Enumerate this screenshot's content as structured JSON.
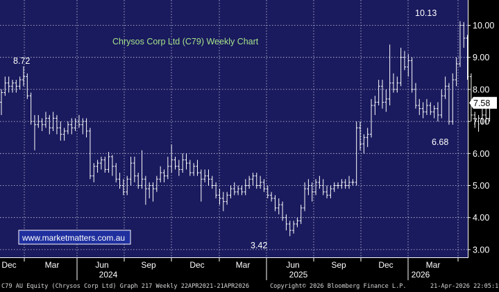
{
  "chart_data": {
    "type": "ohlc",
    "title": "Chrysos Corp Ltd (C79) Weekly Chart",
    "watermark": "www.marketmatters.com.au",
    "y_axis": {
      "ticks": [
        "3.00",
        "4.00",
        "5.00",
        "6.00",
        "7.00",
        "8.00",
        "9.00",
        "10.00"
      ],
      "ylim": [
        2.8,
        10.9
      ],
      "position": "right"
    },
    "x_axis": {
      "month_ticks": [
        "Dec",
        "Mar",
        "Jun",
        "Sep",
        "Dec",
        "Mar",
        "Jun",
        "Sep",
        "Dec",
        "Mar"
      ],
      "year_labels": [
        "2024",
        "2025",
        "2026"
      ]
    },
    "last_price": "7.58",
    "annotations": [
      "8.72",
      "3.42",
      "10.13",
      "6.68"
    ],
    "grid": true,
    "colors": {
      "background": "#1a1a5e",
      "bars": "#ffffff",
      "grid": "#d0d0e0",
      "title": "#a4e28a",
      "watermark_bg": "#1f2f9e",
      "watermark_text": "#ffffff"
    },
    "weeks": [
      {
        "o": 7.6,
        "h": 8.0,
        "l": 7.2,
        "c": 7.9
      },
      {
        "o": 7.9,
        "h": 8.4,
        "l": 7.8,
        "c": 8.2
      },
      {
        "o": 8.2,
        "h": 8.4,
        "l": 7.9,
        "c": 8.1
      },
      {
        "o": 8.1,
        "h": 8.3,
        "l": 7.9,
        "c": 8.2
      },
      {
        "o": 8.2,
        "h": 8.3,
        "l": 7.9,
        "c": 8.1
      },
      {
        "o": 8.1,
        "h": 8.4,
        "l": 8.0,
        "c": 8.3
      },
      {
        "o": 8.3,
        "h": 8.72,
        "l": 8.1,
        "c": 8.4
      },
      {
        "o": 8.4,
        "h": 8.5,
        "l": 7.7,
        "c": 7.8
      },
      {
        "o": 7.8,
        "h": 7.9,
        "l": 6.9,
        "c": 7.0
      },
      {
        "o": 7.0,
        "h": 7.2,
        "l": 6.1,
        "c": 6.9
      },
      {
        "o": 6.9,
        "h": 7.2,
        "l": 6.8,
        "c": 7.0
      },
      {
        "o": 7.0,
        "h": 7.1,
        "l": 6.7,
        "c": 6.9
      },
      {
        "o": 6.9,
        "h": 7.3,
        "l": 6.8,
        "c": 7.1
      },
      {
        "o": 7.1,
        "h": 7.2,
        "l": 6.6,
        "c": 6.8
      },
      {
        "o": 6.8,
        "h": 7.3,
        "l": 6.7,
        "c": 7.1
      },
      {
        "o": 7.1,
        "h": 7.2,
        "l": 6.6,
        "c": 6.8
      },
      {
        "o": 6.8,
        "h": 7.0,
        "l": 6.4,
        "c": 6.6
      },
      {
        "o": 6.6,
        "h": 6.8,
        "l": 6.4,
        "c": 6.7
      },
      {
        "o": 6.7,
        "h": 7.0,
        "l": 6.6,
        "c": 6.9
      },
      {
        "o": 6.9,
        "h": 7.1,
        "l": 6.6,
        "c": 6.8
      },
      {
        "o": 6.8,
        "h": 7.1,
        "l": 6.7,
        "c": 7.0
      },
      {
        "o": 7.0,
        "h": 7.2,
        "l": 6.8,
        "c": 6.9
      },
      {
        "o": 6.9,
        "h": 7.1,
        "l": 6.6,
        "c": 7.0
      },
      {
        "o": 7.0,
        "h": 7.1,
        "l": 6.5,
        "c": 6.7
      },
      {
        "o": 6.7,
        "h": 6.8,
        "l": 5.2,
        "c": 5.3
      },
      {
        "o": 5.3,
        "h": 5.7,
        "l": 5.1,
        "c": 5.6
      },
      {
        "o": 5.6,
        "h": 5.8,
        "l": 5.4,
        "c": 5.7
      },
      {
        "o": 5.7,
        "h": 5.9,
        "l": 5.5,
        "c": 5.8
      },
      {
        "o": 5.8,
        "h": 5.9,
        "l": 5.4,
        "c": 5.5
      },
      {
        "o": 5.5,
        "h": 6.05,
        "l": 5.4,
        "c": 5.9
      },
      {
        "o": 5.9,
        "h": 5.95,
        "l": 5.3,
        "c": 5.6
      },
      {
        "o": 5.6,
        "h": 5.7,
        "l": 5.1,
        "c": 5.2
      },
      {
        "o": 5.2,
        "h": 5.4,
        "l": 4.9,
        "c": 5.0
      },
      {
        "o": 5.0,
        "h": 5.2,
        "l": 4.7,
        "c": 4.8
      },
      {
        "o": 4.8,
        "h": 5.3,
        "l": 4.7,
        "c": 5.2
      },
      {
        "o": 5.2,
        "h": 5.9,
        "l": 5.0,
        "c": 5.7
      },
      {
        "o": 5.7,
        "h": 5.9,
        "l": 5.1,
        "c": 5.3
      },
      {
        "o": 5.3,
        "h": 5.4,
        "l": 4.9,
        "c": 5.0
      },
      {
        "o": 5.0,
        "h": 6.1,
        "l": 4.9,
        "c": 5.2
      },
      {
        "o": 5.2,
        "h": 5.3,
        "l": 4.4,
        "c": 4.9
      },
      {
        "o": 4.9,
        "h": 5.1,
        "l": 4.6,
        "c": 5.0
      },
      {
        "o": 5.0,
        "h": 5.1,
        "l": 4.5,
        "c": 4.9
      },
      {
        "o": 4.9,
        "h": 5.3,
        "l": 4.8,
        "c": 5.2
      },
      {
        "o": 5.2,
        "h": 5.6,
        "l": 5.1,
        "c": 5.4
      },
      {
        "o": 5.4,
        "h": 5.5,
        "l": 5.1,
        "c": 5.3
      },
      {
        "o": 5.3,
        "h": 5.9,
        "l": 5.2,
        "c": 5.6
      },
      {
        "o": 5.6,
        "h": 6.28,
        "l": 5.4,
        "c": 5.8
      },
      {
        "o": 5.8,
        "h": 5.9,
        "l": 5.5,
        "c": 5.6
      },
      {
        "o": 5.6,
        "h": 5.8,
        "l": 5.3,
        "c": 5.5
      },
      {
        "o": 5.5,
        "h": 6.0,
        "l": 5.4,
        "c": 5.8
      },
      {
        "o": 5.8,
        "h": 6.0,
        "l": 5.5,
        "c": 5.7
      },
      {
        "o": 5.7,
        "h": 5.8,
        "l": 5.3,
        "c": 5.4
      },
      {
        "o": 5.4,
        "h": 5.7,
        "l": 5.3,
        "c": 5.6
      },
      {
        "o": 5.6,
        "h": 5.8,
        "l": 5.3,
        "c": 5.4
      },
      {
        "o": 5.4,
        "h": 5.5,
        "l": 4.5,
        "c": 5.2
      },
      {
        "o": 5.2,
        "h": 5.5,
        "l": 5.1,
        "c": 5.3
      },
      {
        "o": 5.3,
        "h": 5.5,
        "l": 5.0,
        "c": 5.2
      },
      {
        "o": 5.2,
        "h": 5.3,
        "l": 4.9,
        "c": 5.0
      },
      {
        "o": 5.0,
        "h": 5.1,
        "l": 4.6,
        "c": 4.7
      },
      {
        "o": 4.7,
        "h": 4.9,
        "l": 4.4,
        "c": 4.6
      },
      {
        "o": 4.6,
        "h": 4.8,
        "l": 4.2,
        "c": 4.5
      },
      {
        "o": 4.5,
        "h": 4.8,
        "l": 4.4,
        "c": 4.7
      },
      {
        "o": 4.7,
        "h": 5.0,
        "l": 4.6,
        "c": 4.9
      },
      {
        "o": 4.9,
        "h": 5.1,
        "l": 4.7,
        "c": 4.8
      },
      {
        "o": 4.8,
        "h": 5.0,
        "l": 4.7,
        "c": 4.9
      },
      {
        "o": 4.9,
        "h": 5.0,
        "l": 4.7,
        "c": 4.8
      },
      {
        "o": 4.8,
        "h": 5.2,
        "l": 4.7,
        "c": 5.0
      },
      {
        "o": 5.0,
        "h": 5.3,
        "l": 4.9,
        "c": 5.2
      },
      {
        "o": 5.2,
        "h": 5.4,
        "l": 5.0,
        "c": 5.3
      },
      {
        "o": 5.3,
        "h": 5.4,
        "l": 4.9,
        "c": 5.0
      },
      {
        "o": 5.0,
        "h": 5.3,
        "l": 4.9,
        "c": 5.1
      },
      {
        "o": 5.1,
        "h": 5.2,
        "l": 4.8,
        "c": 4.9
      },
      {
        "o": 4.9,
        "h": 5.0,
        "l": 4.6,
        "c": 4.7
      },
      {
        "o": 4.7,
        "h": 4.8,
        "l": 4.5,
        "c": 4.6
      },
      {
        "o": 4.6,
        "h": 4.7,
        "l": 4.2,
        "c": 4.3
      },
      {
        "o": 4.3,
        "h": 4.6,
        "l": 4.1,
        "c": 4.4
      },
      {
        "o": 4.4,
        "h": 4.5,
        "l": 3.9,
        "c": 4.0
      },
      {
        "o": 4.0,
        "h": 4.1,
        "l": 3.6,
        "c": 3.8
      },
      {
        "o": 3.8,
        "h": 3.9,
        "l": 3.42,
        "c": 3.6
      },
      {
        "o": 3.6,
        "h": 3.9,
        "l": 3.5,
        "c": 3.8
      },
      {
        "o": 3.8,
        "h": 4.0,
        "l": 3.7,
        "c": 3.9
      },
      {
        "o": 3.9,
        "h": 4.4,
        "l": 3.8,
        "c": 4.3
      },
      {
        "o": 4.3,
        "h": 5.1,
        "l": 4.2,
        "c": 4.9
      },
      {
        "o": 4.9,
        "h": 5.2,
        "l": 4.7,
        "c": 5.0
      },
      {
        "o": 5.0,
        "h": 5.1,
        "l": 4.5,
        "c": 4.8
      },
      {
        "o": 4.8,
        "h": 5.2,
        "l": 4.7,
        "c": 5.1
      },
      {
        "o": 5.1,
        "h": 5.3,
        "l": 4.9,
        "c": 5.0
      },
      {
        "o": 5.0,
        "h": 5.2,
        "l": 4.7,
        "c": 4.8
      },
      {
        "o": 4.8,
        "h": 5.0,
        "l": 4.6,
        "c": 4.7
      },
      {
        "o": 4.7,
        "h": 5.0,
        "l": 4.6,
        "c": 4.9
      },
      {
        "o": 4.9,
        "h": 5.1,
        "l": 4.8,
        "c": 5.0
      },
      {
        "o": 5.0,
        "h": 5.1,
        "l": 4.9,
        "c": 5.0
      },
      {
        "o": 5.0,
        "h": 5.2,
        "l": 4.9,
        "c": 5.1
      },
      {
        "o": 5.1,
        "h": 5.2,
        "l": 4.9,
        "c": 5.0
      },
      {
        "o": 5.0,
        "h": 5.3,
        "l": 4.9,
        "c": 5.1
      },
      {
        "o": 5.1,
        "h": 5.2,
        "l": 5.0,
        "c": 5.1
      },
      {
        "o": 5.1,
        "h": 7.0,
        "l": 5.0,
        "c": 6.8
      },
      {
        "o": 6.8,
        "h": 7.0,
        "l": 6.1,
        "c": 6.3
      },
      {
        "o": 6.3,
        "h": 6.6,
        "l": 6.0,
        "c": 6.5
      },
      {
        "o": 6.5,
        "h": 6.8,
        "l": 6.2,
        "c": 6.6
      },
      {
        "o": 6.6,
        "h": 7.7,
        "l": 6.5,
        "c": 7.5
      },
      {
        "o": 7.5,
        "h": 7.8,
        "l": 7.2,
        "c": 7.6
      },
      {
        "o": 7.6,
        "h": 8.3,
        "l": 7.5,
        "c": 8.1
      },
      {
        "o": 8.1,
        "h": 8.3,
        "l": 7.4,
        "c": 7.6
      },
      {
        "o": 7.6,
        "h": 8.0,
        "l": 7.3,
        "c": 7.7
      },
      {
        "o": 7.7,
        "h": 9.4,
        "l": 7.5,
        "c": 8.2
      },
      {
        "o": 8.2,
        "h": 8.5,
        "l": 7.9,
        "c": 8.0
      },
      {
        "o": 8.0,
        "h": 8.4,
        "l": 7.9,
        "c": 8.2
      },
      {
        "o": 8.2,
        "h": 9.3,
        "l": 8.1,
        "c": 9.0
      },
      {
        "o": 9.0,
        "h": 9.2,
        "l": 8.6,
        "c": 8.7
      },
      {
        "o": 8.7,
        "h": 9.1,
        "l": 8.4,
        "c": 8.9
      },
      {
        "o": 8.9,
        "h": 9.0,
        "l": 7.9,
        "c": 8.0
      },
      {
        "o": 8.0,
        "h": 8.2,
        "l": 7.4,
        "c": 7.5
      },
      {
        "o": 7.5,
        "h": 7.7,
        "l": 7.2,
        "c": 7.4
      },
      {
        "o": 7.4,
        "h": 7.6,
        "l": 7.1,
        "c": 7.3
      },
      {
        "o": 7.3,
        "h": 7.7,
        "l": 7.2,
        "c": 7.5
      },
      {
        "o": 7.5,
        "h": 7.6,
        "l": 7.2,
        "c": 7.3
      },
      {
        "o": 7.3,
        "h": 7.5,
        "l": 7.1,
        "c": 7.4
      },
      {
        "o": 7.4,
        "h": 7.6,
        "l": 7.0,
        "c": 7.2
      },
      {
        "o": 7.2,
        "h": 8.0,
        "l": 7.1,
        "c": 7.8
      },
      {
        "o": 7.8,
        "h": 8.4,
        "l": 7.7,
        "c": 8.1
      },
      {
        "o": 8.1,
        "h": 8.2,
        "l": 6.9,
        "c": 7.0
      },
      {
        "o": 7.0,
        "h": 8.5,
        "l": 6.9,
        "c": 8.3
      },
      {
        "o": 8.3,
        "h": 9.0,
        "l": 8.1,
        "c": 8.8
      },
      {
        "o": 8.8,
        "h": 10.13,
        "l": 8.7,
        "c": 10.0
      },
      {
        "o": 10.0,
        "h": 10.1,
        "l": 9.3,
        "c": 9.6
      },
      {
        "o": 9.6,
        "h": 9.7,
        "l": 8.3,
        "c": 8.4
      },
      {
        "o": 8.4,
        "h": 8.5,
        "l": 7.0,
        "c": 7.2
      },
      {
        "o": 7.2,
        "h": 7.3,
        "l": 6.8,
        "c": 7.0
      },
      {
        "o": 7.0,
        "h": 7.2,
        "l": 6.68,
        "c": 7.1
      },
      {
        "o": 7.1,
        "h": 7.4,
        "l": 6.9,
        "c": 7.2
      },
      {
        "o": 7.2,
        "h": 7.5,
        "l": 6.9,
        "c": 7.1
      },
      {
        "o": 7.1,
        "h": 7.7,
        "l": 7.0,
        "c": 7.58
      }
    ]
  },
  "footer": {
    "left": "C79 AU Equity (Chrysos Corp Ltd) Graph 217 Weekly 22APR2021-21APR2026",
    "center": "Copyright© 2026 Bloomberg Finance L.P.",
    "right": "21-Apr-2026 22:05:19"
  }
}
